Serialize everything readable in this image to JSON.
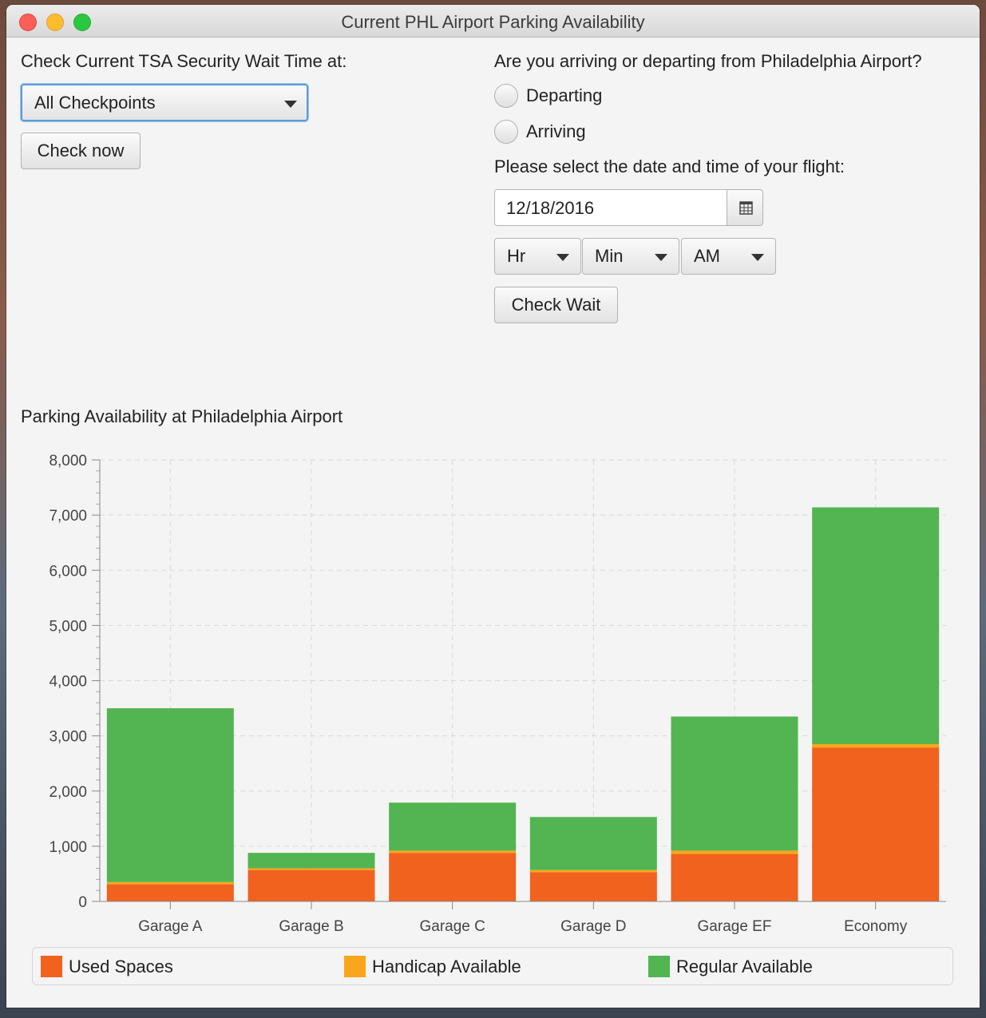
{
  "window": {
    "title": "Current PHL Airport Parking Availability"
  },
  "tsa": {
    "label": "Check Current TSA Security Wait Time at:",
    "checkpoint_selected": "All Checkpoints",
    "check_now_label": "Check now"
  },
  "flight": {
    "question": "Are you arriving or departing from Philadelphia Airport?",
    "options": [
      "Departing",
      "Arriving"
    ],
    "date_prompt": "Please select the date and time of your flight:",
    "date_value": "12/18/2016",
    "hour_selected": "Hr",
    "minute_selected": "Min",
    "ampm_selected": "AM",
    "check_wait_label": "Check Wait"
  },
  "chart_data": {
    "type": "bar",
    "stacked": true,
    "title": "Parking Availability at Philadelphia Airport",
    "categories": [
      "Garage A",
      "Garage B",
      "Garage C",
      "Garage D",
      "Garage EF",
      "Economy"
    ],
    "series": [
      {
        "name": "Used Spaces",
        "color": "#f1621e",
        "values": [
          310,
          570,
          880,
          530,
          860,
          2790
        ]
      },
      {
        "name": "Handicap Available",
        "color": "#f8a61b",
        "values": [
          40,
          30,
          40,
          40,
          60,
          60
        ]
      },
      {
        "name": "Regular Available",
        "color": "#53b551",
        "values": [
          3150,
          280,
          870,
          960,
          2430,
          4290
        ]
      }
    ],
    "ylim": [
      0,
      8000
    ],
    "yticks": [
      "0",
      "1,000",
      "2,000",
      "3,000",
      "4,000",
      "5,000",
      "6,000",
      "7,000",
      "8,000"
    ],
    "grid": true,
    "legend_position": "bottom"
  }
}
